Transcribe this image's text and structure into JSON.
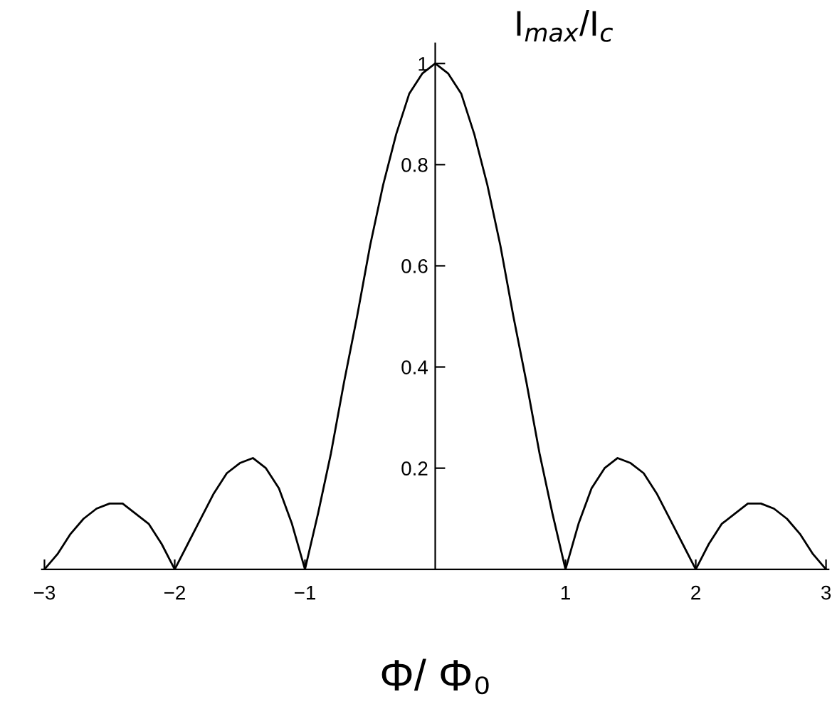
{
  "chart_data": {
    "type": "line",
    "xlabel": "Φ/ Φ₀",
    "ylabel": "I$_{max}$/I$_{c}$",
    "x": [
      -3.0,
      -2.9,
      -2.8,
      -2.7,
      -2.6,
      -2.5,
      -2.4,
      -2.3,
      -2.2,
      -2.1,
      -2.0,
      -1.9,
      -1.8,
      -1.7,
      -1.6,
      -1.5,
      -1.4,
      -1.3,
      -1.2,
      -1.1,
      -1.0,
      -0.9,
      -0.8,
      -0.7,
      -0.6,
      -0.5,
      -0.4,
      -0.3,
      -0.2,
      -0.1,
      0.0,
      0.1,
      0.2,
      0.3,
      0.4,
      0.5,
      0.6,
      0.7,
      0.8,
      0.9,
      1.0,
      1.1,
      1.2,
      1.3,
      1.4,
      1.5,
      1.6,
      1.7,
      1.8,
      1.9,
      2.0,
      2.1,
      2.2,
      2.3,
      2.4,
      2.5,
      2.6,
      2.7,
      2.8,
      2.9,
      3.0
    ],
    "series": [
      {
        "color": "#000000",
        "values": [
          0,
          0.03,
          0.07,
          0.1,
          0.12,
          0.13,
          0.13,
          0.11,
          0.09,
          0.05,
          0,
          0.05,
          0.1,
          0.15,
          0.19,
          0.21,
          0.22,
          0.2,
          0.16,
          0.09,
          0,
          0.11,
          0.23,
          0.37,
          0.5,
          0.64,
          0.76,
          0.86,
          0.94,
          0.98,
          1,
          0.98,
          0.94,
          0.86,
          0.76,
          0.64,
          0.5,
          0.37,
          0.23,
          0.11,
          0,
          0.09,
          0.16,
          0.2,
          0.22,
          0.21,
          0.19,
          0.15,
          0.1,
          0.05,
          0,
          0.05,
          0.09,
          0.11,
          0.13,
          0.13,
          0.12,
          0.1,
          0.07,
          0.03,
          0
        ]
      }
    ],
    "xlim": [
      -3.02,
      3.02
    ],
    "ylim": [
      0,
      1.04
    ],
    "xticks": [
      {
        "value": -3,
        "label": "−3"
      },
      {
        "value": -2,
        "label": "−2"
      },
      {
        "value": -1,
        "label": "−1"
      },
      1,
      2,
      3
    ],
    "yticks": [
      0.2,
      0.4,
      0.6,
      0.8,
      1
    ],
    "grid": false,
    "line_style": "solid"
  }
}
